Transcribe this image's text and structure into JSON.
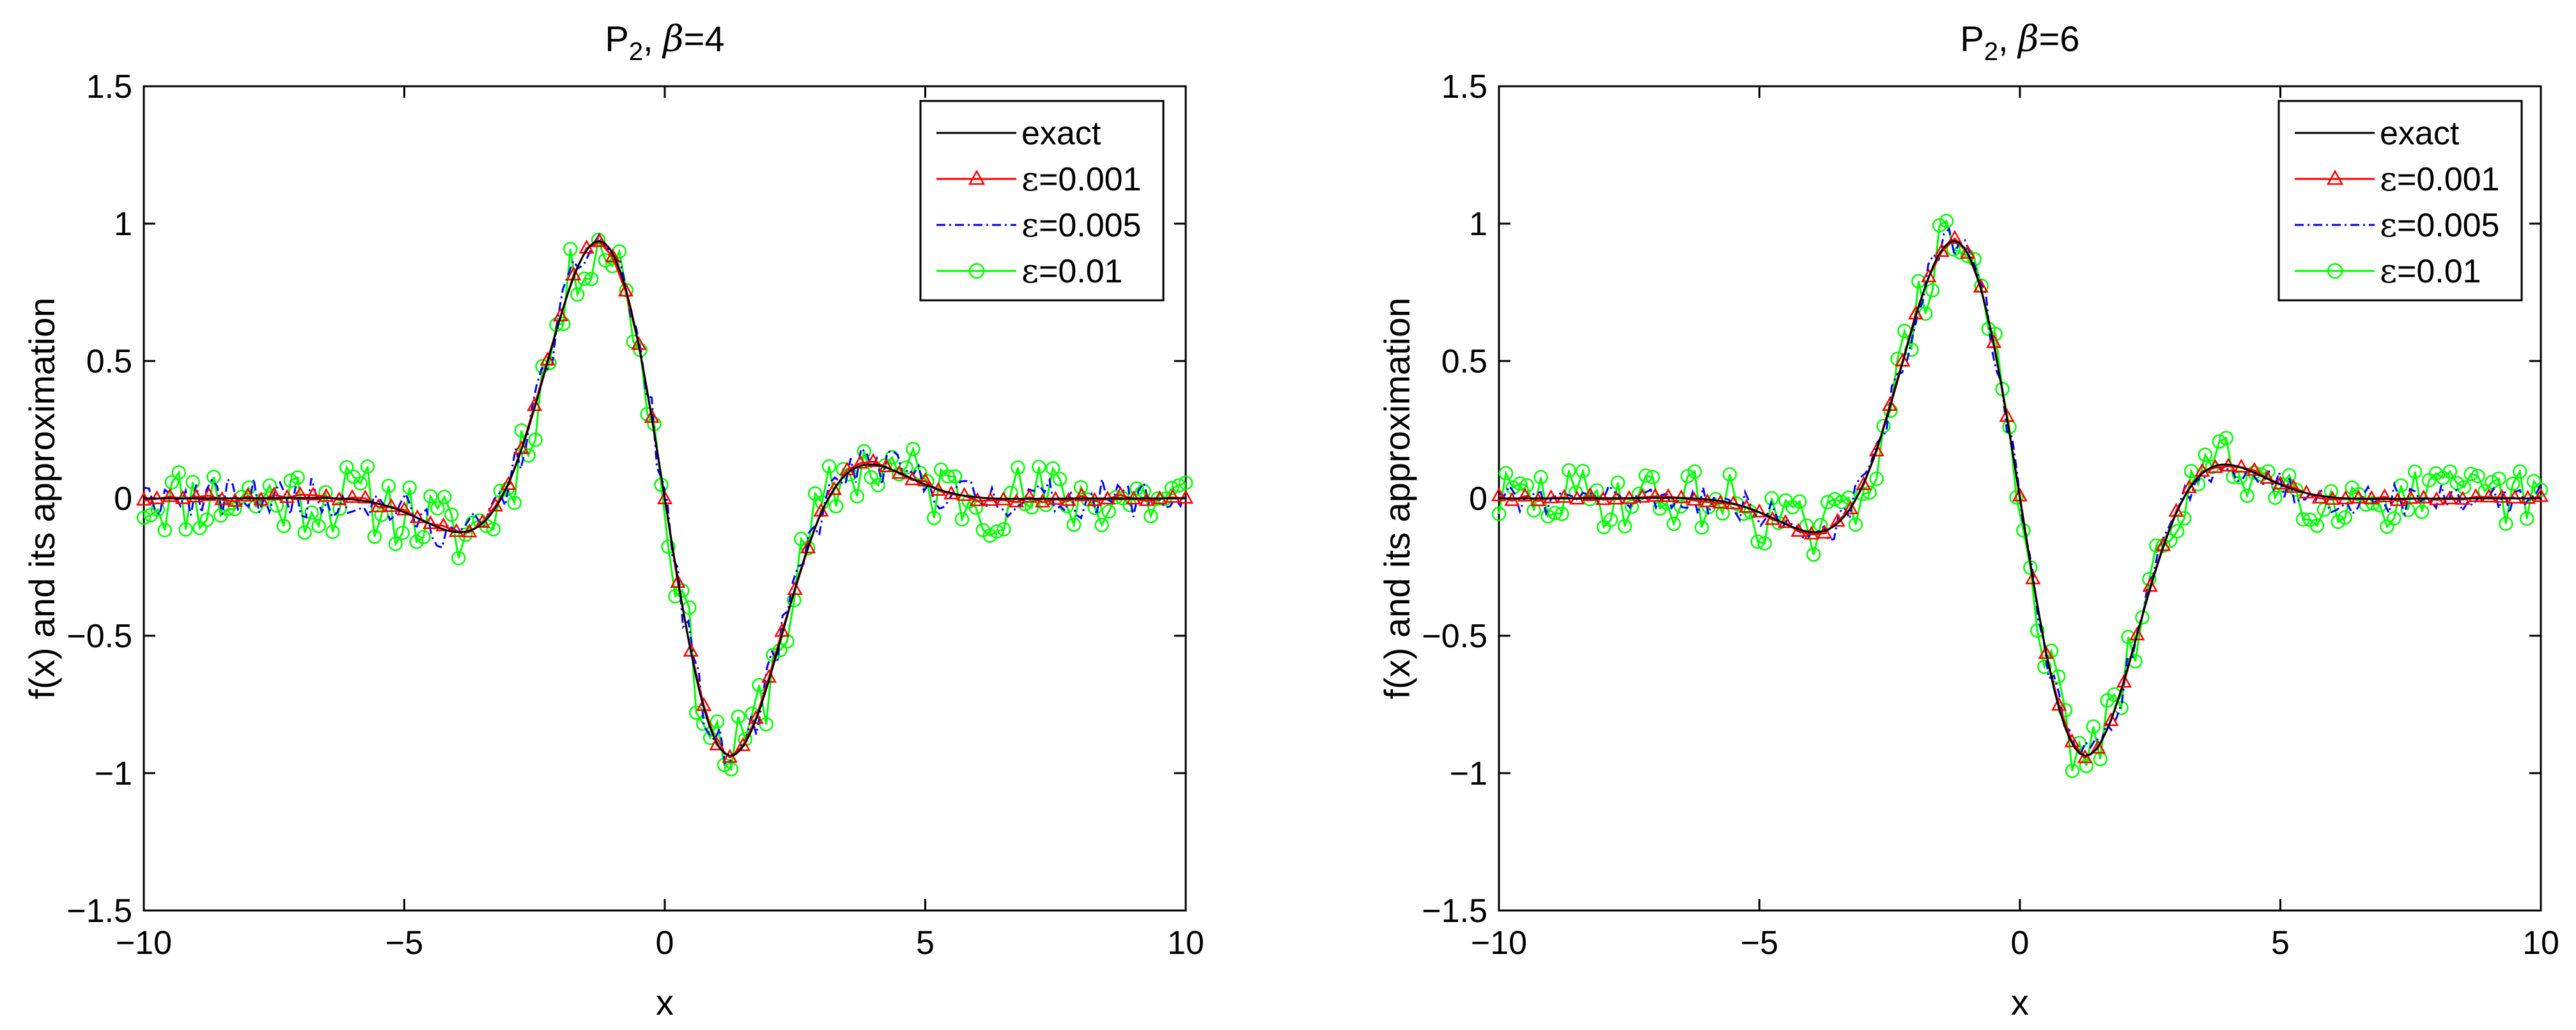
{
  "chart_data": [
    {
      "type": "line",
      "title_main": "P",
      "title_sub": "2",
      "title_sep": ", ",
      "title_greek": "β",
      "title_value": "=4",
      "xlabel": "x",
      "ylabel": "f(x) and its approximation",
      "xlim": [
        -10,
        10
      ],
      "ylim": [
        -1.5,
        1.5
      ],
      "xticks": [
        -10,
        -5,
        0,
        5,
        10
      ],
      "xtick_labels": [
        "−10",
        "−5",
        "0",
        "5",
        "10"
      ],
      "yticks": [
        -1.5,
        -1,
        -0.5,
        0,
        0.5,
        1,
        1.5
      ],
      "ytick_labels": [
        "−1.5",
        "−1",
        "−0.5",
        "0",
        "0.5",
        "1",
        "1.5"
      ],
      "legend_position": "top-right",
      "legend": [
        {
          "key": "exact",
          "label": "exact",
          "color": "#000000",
          "marker": "none",
          "dash": "solid"
        },
        {
          "key": "e001",
          "greek": "ε",
          "label": "=0.001",
          "color": "#ff0000",
          "marker": "triangle",
          "dash": "solid"
        },
        {
          "key": "e005",
          "greek": "ε",
          "label": "=0.005",
          "color": "#0000ff",
          "marker": "none",
          "dash": "dashdot"
        },
        {
          "key": "e01",
          "greek": "ε",
          "label": "=0.01",
          "color": "#00ff00",
          "marker": "circle",
          "dash": "solid"
        }
      ],
      "noise_seed": 11,
      "series": [
        {
          "key": "exact",
          "name": "exact",
          "function": "exp(-x^2/8)*sin(-x)*1.2",
          "points": 200,
          "noise": 0,
          "color": "#000000"
        },
        {
          "key": "e001",
          "name": "ε=0.001",
          "function": "exp(-x^2/8)*sin(-x)*1.2",
          "points": 81,
          "noise": 0.008,
          "color": "#ff0000"
        },
        {
          "key": "e005",
          "name": "ε=0.005",
          "function": "exp(-x^2/8)*sin(-x)*1.2",
          "points": 200,
          "noise": 0.045,
          "color": "#0000ff"
        },
        {
          "key": "e01",
          "name": "ε=0.01",
          "function": "exp(-x^2/8)*sin(-x)*1.2",
          "points": 150,
          "noise": 0.085,
          "color": "#00ff00"
        }
      ]
    },
    {
      "type": "line",
      "title_main": "P",
      "title_sub": "2",
      "title_sep": ", ",
      "title_greek": "β",
      "title_value": "=6",
      "xlabel": "x",
      "ylabel": "f(x) and its approximation",
      "xlim": [
        -10,
        10
      ],
      "ylim": [
        -1.5,
        1.5
      ],
      "xticks": [
        -10,
        -5,
        0,
        5,
        10
      ],
      "xtick_labels": [
        "−10",
        "−5",
        "0",
        "5",
        "10"
      ],
      "yticks": [
        -1.5,
        -1,
        -0.5,
        0,
        0.5,
        1,
        1.5
      ],
      "ytick_labels": [
        "−1.5",
        "−1",
        "−0.5",
        "0",
        "0.5",
        "1",
        "1.5"
      ],
      "legend_position": "top-right",
      "legend": [
        {
          "key": "exact",
          "label": "exact",
          "color": "#000000",
          "marker": "none",
          "dash": "solid"
        },
        {
          "key": "e001",
          "greek": "ε",
          "label": "=0.001",
          "color": "#ff0000",
          "marker": "triangle",
          "dash": "solid"
        },
        {
          "key": "e005",
          "greek": "ε",
          "label": "=0.005",
          "color": "#0000ff",
          "marker": "none",
          "dash": "dashdot"
        },
        {
          "key": "e01",
          "greek": "ε",
          "label": "=0.01",
          "color": "#00ff00",
          "marker": "circle",
          "dash": "solid"
        }
      ],
      "noise_seed": 29,
      "series": [
        {
          "key": "exact",
          "name": "exact",
          "function": "exp(-x^2/8)*sin(-x)*1.2",
          "points": 200,
          "noise": 0,
          "color": "#000000"
        },
        {
          "key": "e001",
          "name": "ε=0.001",
          "function": "exp(-x^2/8)*sin(-x)*1.2",
          "points": 81,
          "noise": 0.006,
          "color": "#ff0000"
        },
        {
          "key": "e005",
          "name": "ε=0.005",
          "function": "exp(-x^2/8)*sin(-x)*1.2",
          "points": 200,
          "noise": 0.035,
          "color": "#0000ff"
        },
        {
          "key": "e01",
          "name": "ε=0.01",
          "function": "exp(-x^2/8)*sin(-x)*1.2",
          "points": 150,
          "noise": 0.07,
          "color": "#00ff00"
        }
      ]
    }
  ]
}
